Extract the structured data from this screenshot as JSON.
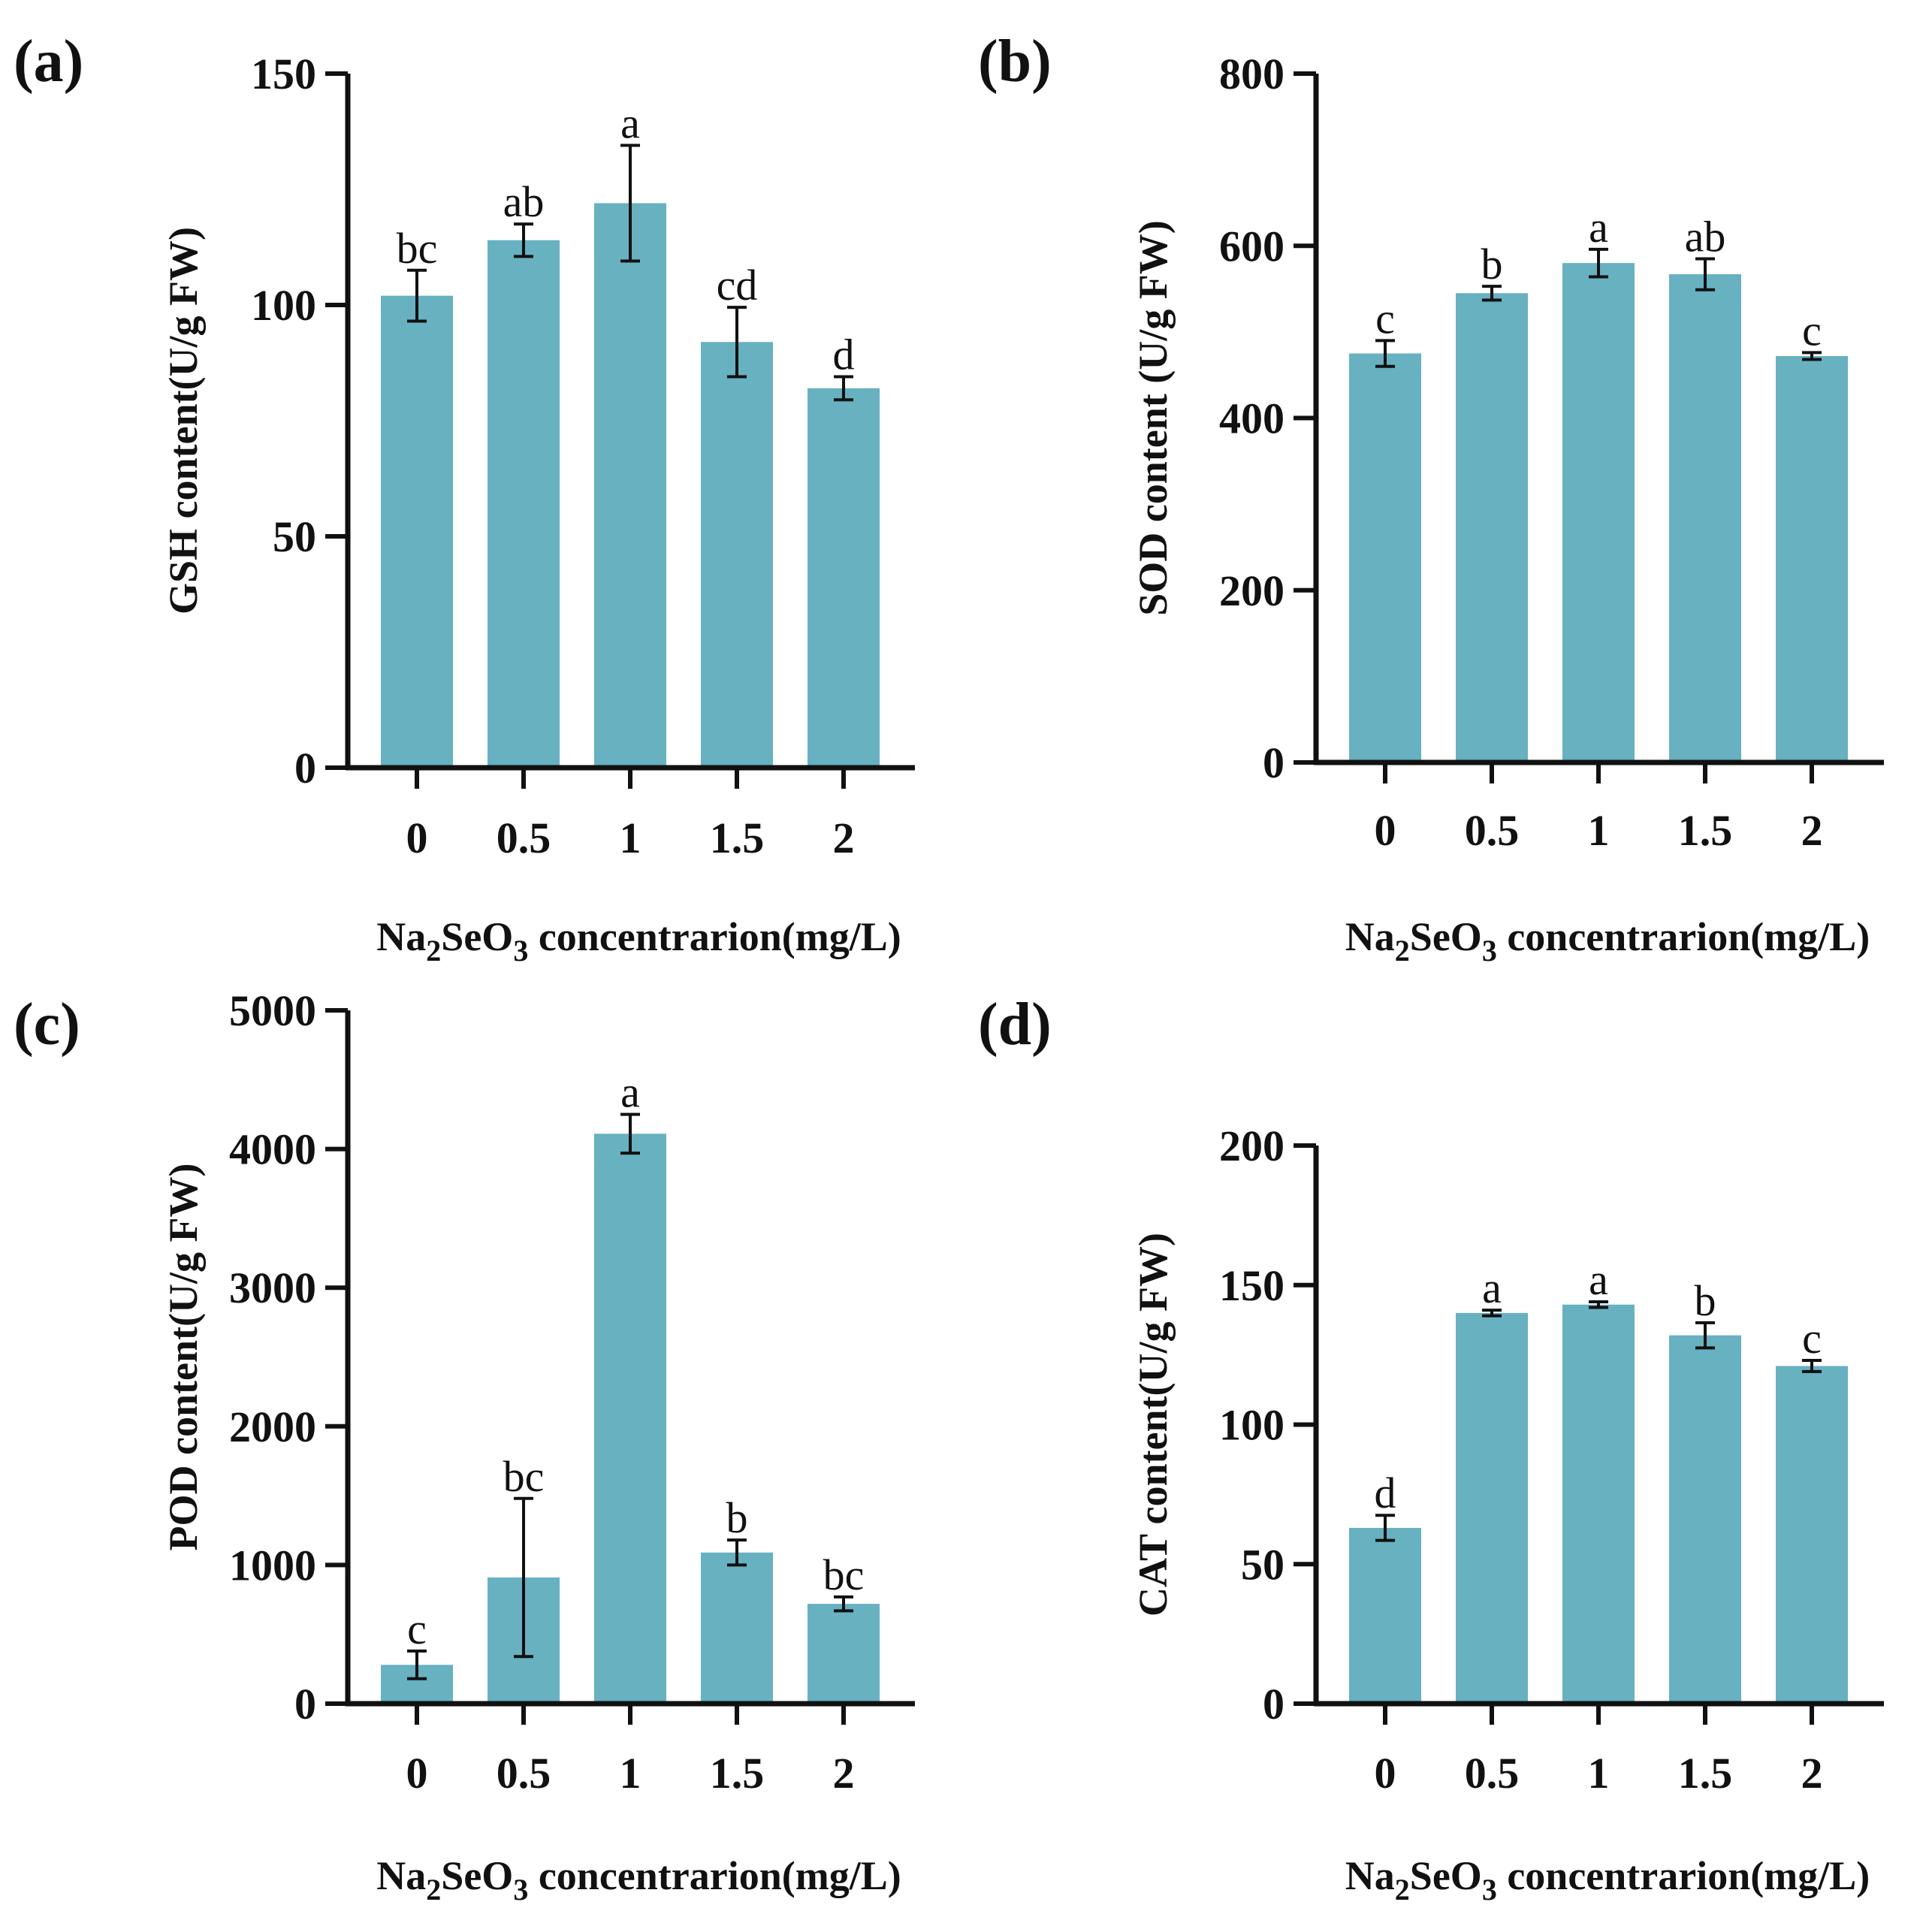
{
  "chart_data": [
    {
      "panel_label": "(a)",
      "type": "bar",
      "ylabel": "GSH content(U/g FW)",
      "xlabel_prefix": "Na",
      "xlabel_sub1": "2",
      "xlabel_mid": "SeO",
      "xlabel_sub2": "3",
      "xlabel_suffix": " concentrarion(mg/L)",
      "categories": [
        "0",
        "0.5",
        "1",
        "1.5",
        "2"
      ],
      "values": [
        102,
        114,
        122,
        92,
        82
      ],
      "errors": [
        5.5,
        3.5,
        12.5,
        7.5,
        2.5
      ],
      "letters": [
        "bc",
        "ab",
        "a",
        "cd",
        "d"
      ],
      "ylim": [
        0,
        150
      ],
      "yticks": [
        0,
        50,
        100,
        150
      ],
      "bar_color": "#67b1c1",
      "grid": false
    },
    {
      "panel_label": "(b)",
      "type": "bar",
      "ylabel": "SOD content (U/g FW)",
      "xlabel_prefix": "Na",
      "xlabel_sub1": "2",
      "xlabel_mid": "SeO",
      "xlabel_sub2": "3",
      "xlabel_suffix": " concentrarion(mg/L)",
      "categories": [
        "0",
        "0.5",
        "1",
        "1.5",
        "2"
      ],
      "values": [
        475,
        545,
        580,
        567,
        472
      ],
      "errors": [
        15,
        8,
        16,
        18,
        4
      ],
      "letters": [
        "c",
        "b",
        "a",
        "ab",
        "c"
      ],
      "ylim": [
        0,
        800
      ],
      "yticks": [
        0,
        200,
        400,
        600,
        800
      ],
      "bar_color": "#67b1c1",
      "grid": false
    },
    {
      "panel_label": "(c)",
      "type": "bar",
      "ylabel": "POD content(U/g FW)",
      "xlabel_prefix": "Na",
      "xlabel_sub1": "2",
      "xlabel_mid": "SeO",
      "xlabel_sub2": "3",
      "xlabel_suffix": " concentrarion(mg/L)",
      "categories": [
        "0",
        "0.5",
        "1",
        "1.5",
        "2"
      ],
      "values": [
        280,
        910,
        4110,
        1090,
        720
      ],
      "errors": [
        100,
        570,
        140,
        90,
        50
      ],
      "letters": [
        "c",
        "bc",
        "a",
        "b",
        "bc"
      ],
      "ylim": [
        0,
        5000
      ],
      "yticks": [
        0,
        1000,
        2000,
        3000,
        4000,
        5000
      ],
      "bar_color": "#67b1c1",
      "grid": false
    },
    {
      "panel_label": "(d)",
      "type": "bar",
      "ylabel": "CAT content(U/g FW)",
      "xlabel_prefix": "Na",
      "xlabel_sub1": "2",
      "xlabel_mid": "SeO",
      "xlabel_sub2": "3",
      "xlabel_suffix": " concentrarion(mg/L)",
      "categories": [
        "0",
        "0.5",
        "1",
        "1.5",
        "2"
      ],
      "values": [
        63,
        140,
        143,
        132,
        121
      ],
      "errors": [
        4.5,
        1,
        1,
        4.5,
        2
      ],
      "letters": [
        "d",
        "a",
        "a",
        "b",
        "c"
      ],
      "ylim": [
        0,
        200
      ],
      "yticks": [
        0,
        50,
        100,
        150,
        200
      ],
      "bar_color": "#67b1c1",
      "grid": false
    }
  ]
}
